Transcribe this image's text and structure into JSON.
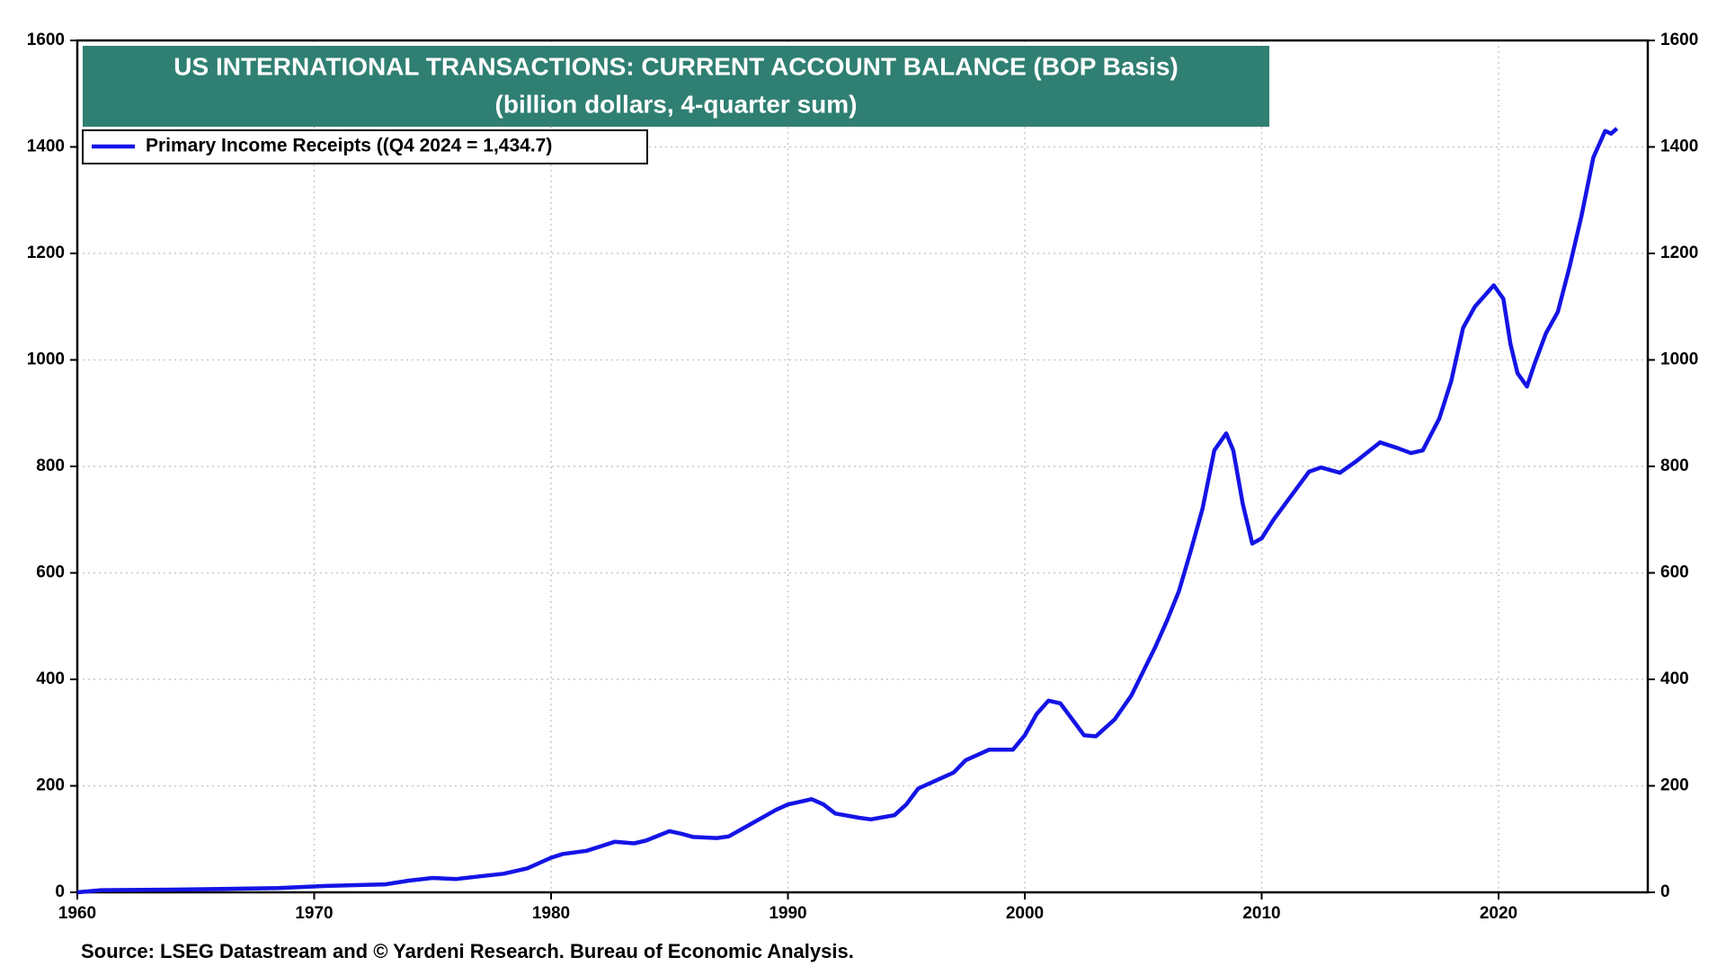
{
  "chart_data": {
    "type": "line",
    "title": "US INTERNATIONAL TRANSACTIONS: CURRENT ACCOUNT BALANCE (BOP Basis)",
    "subtitle": "(billion dollars, 4-quarter sum)",
    "source": "Source: LSEG Datastream and © Yardeni Research. Bureau of Economic Analysis.",
    "x": [
      1960,
      1961,
      1964,
      1968.5,
      1970.5,
      1973,
      1974,
      1975,
      1976,
      1977,
      1978,
      1979,
      1980,
      1980.5,
      1981.5,
      1982,
      1982.7,
      1983.5,
      1984,
      1985,
      1985.5,
      1986,
      1987,
      1987.5,
      1988.5,
      1989.5,
      1990,
      1990.5,
      1991,
      1991.5,
      1992,
      1993,
      1993.5,
      1994.5,
      1995,
      1995.5,
      1996.5,
      1997,
      1997.5,
      1998.5,
      1999.5,
      2000,
      2000.5,
      2001,
      2001.5,
      2002,
      2002.5,
      2003,
      2003.8,
      2004.5,
      2005.5,
      2006,
      2006.5,
      2007,
      2007.5,
      2008,
      2008.5,
      2008.8,
      2009.2,
      2009.6,
      2010,
      2010.5,
      2011.5,
      2012,
      2012.5,
      2013.3,
      2014,
      2015,
      2015.7,
      2016.3,
      2016.8,
      2017.5,
      2018,
      2018.5,
      2019,
      2019.8,
      2020.2,
      2020.5,
      2020.8,
      2021.2,
      2021.5,
      2022,
      2022.5,
      2023,
      2023.5,
      2024,
      2024.5,
      2024.75,
      2025
    ],
    "series": [
      {
        "name": "Primary Income Receipts ((Q4 2024 = 1,434.7)",
        "color": "#1414e6",
        "values": [
          0,
          4,
          5,
          8,
          12,
          15,
          22,
          27,
          25,
          30,
          35,
          45,
          65,
          72,
          78,
          85,
          95,
          92,
          97,
          115,
          110,
          104,
          102,
          105,
          130,
          155,
          165,
          170,
          175,
          165,
          148,
          140,
          137,
          145,
          165,
          195,
          215,
          225,
          248,
          268,
          268,
          295,
          335,
          360,
          355,
          325,
          295,
          293,
          325,
          370,
          460,
          510,
          565,
          640,
          720,
          830,
          862,
          830,
          730,
          655,
          665,
          700,
          760,
          790,
          798,
          788,
          810,
          845,
          835,
          825,
          830,
          890,
          960,
          1060,
          1100,
          1140,
          1115,
          1030,
          975,
          950,
          990,
          1050,
          1090,
          1175,
          1270,
          1380,
          1430,
          1425,
          1434.7
        ]
      }
    ],
    "xlim": [
      1960,
      2026.3
    ],
    "xticks": [
      1960,
      1970,
      1980,
      1990,
      2000,
      2010,
      2020
    ],
    "ylim": [
      0,
      1600
    ],
    "yticks": [
      0,
      200,
      400,
      600,
      800,
      1000,
      1200,
      1400,
      1600
    ],
    "y2lim": [
      0,
      1600
    ],
    "y2ticks": [
      0,
      200,
      400,
      600,
      800,
      1000,
      1200,
      1400,
      1600
    ],
    "grid": true,
    "legend": "upper left",
    "title_box_color": "#2f7f72"
  }
}
